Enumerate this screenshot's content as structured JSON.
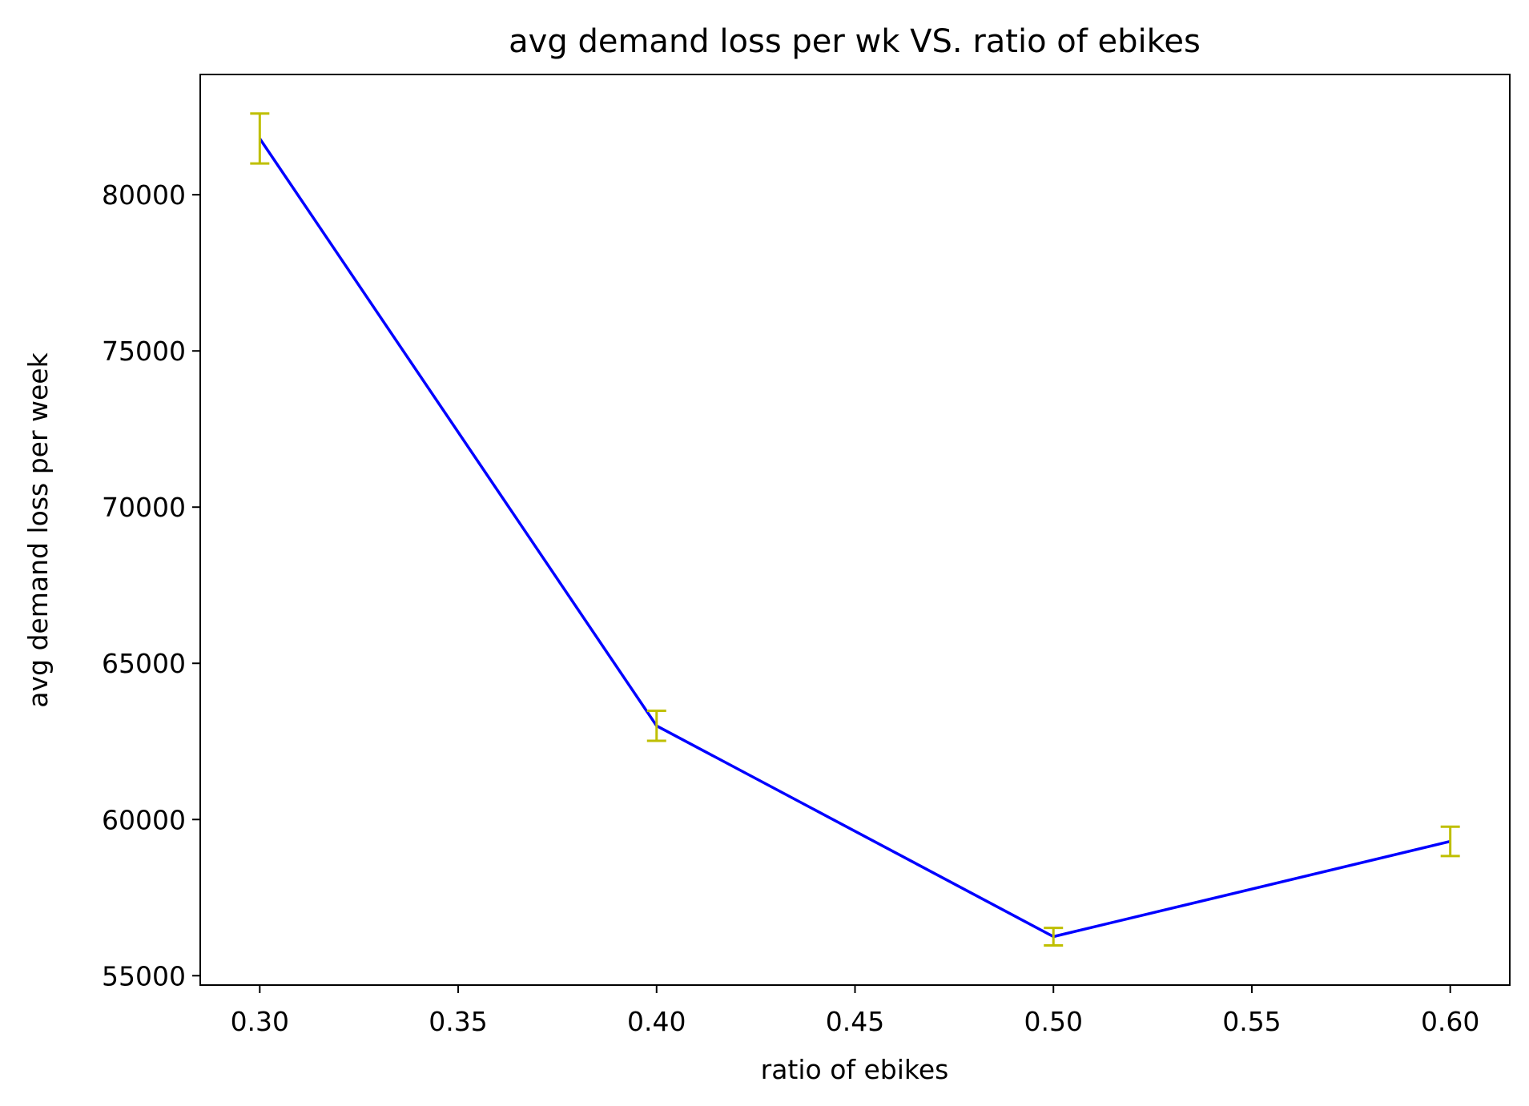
{
  "chart_data": {
    "type": "line",
    "title": "avg demand loss per wk VS. ratio of ebikes",
    "xlabel": "ratio of ebikes",
    "ylabel": "avg demand loss per week",
    "xlim": [
      0.285,
      0.615
    ],
    "ylim": [
      54700,
      83850
    ],
    "x_ticks": [
      0.3,
      0.35,
      0.4,
      0.45,
      0.5,
      0.55,
      0.6
    ],
    "x_tick_labels": [
      "0.30",
      "0.35",
      "0.40",
      "0.45",
      "0.50",
      "0.55",
      "0.60"
    ],
    "y_ticks": [
      55000,
      60000,
      65000,
      70000,
      75000,
      80000
    ],
    "y_tick_labels": [
      "55000",
      "60000",
      "65000",
      "70000",
      "75000",
      "80000"
    ],
    "grid": false,
    "series": [
      {
        "x": [
          0.3,
          0.4,
          0.5,
          0.6
        ],
        "y": [
          81800,
          63000,
          56250,
          59300
        ],
        "yerr": [
          800,
          480,
          280,
          470
        ],
        "line_color": "#0000ff",
        "errorbar_color": "#bfbf00"
      }
    ]
  }
}
